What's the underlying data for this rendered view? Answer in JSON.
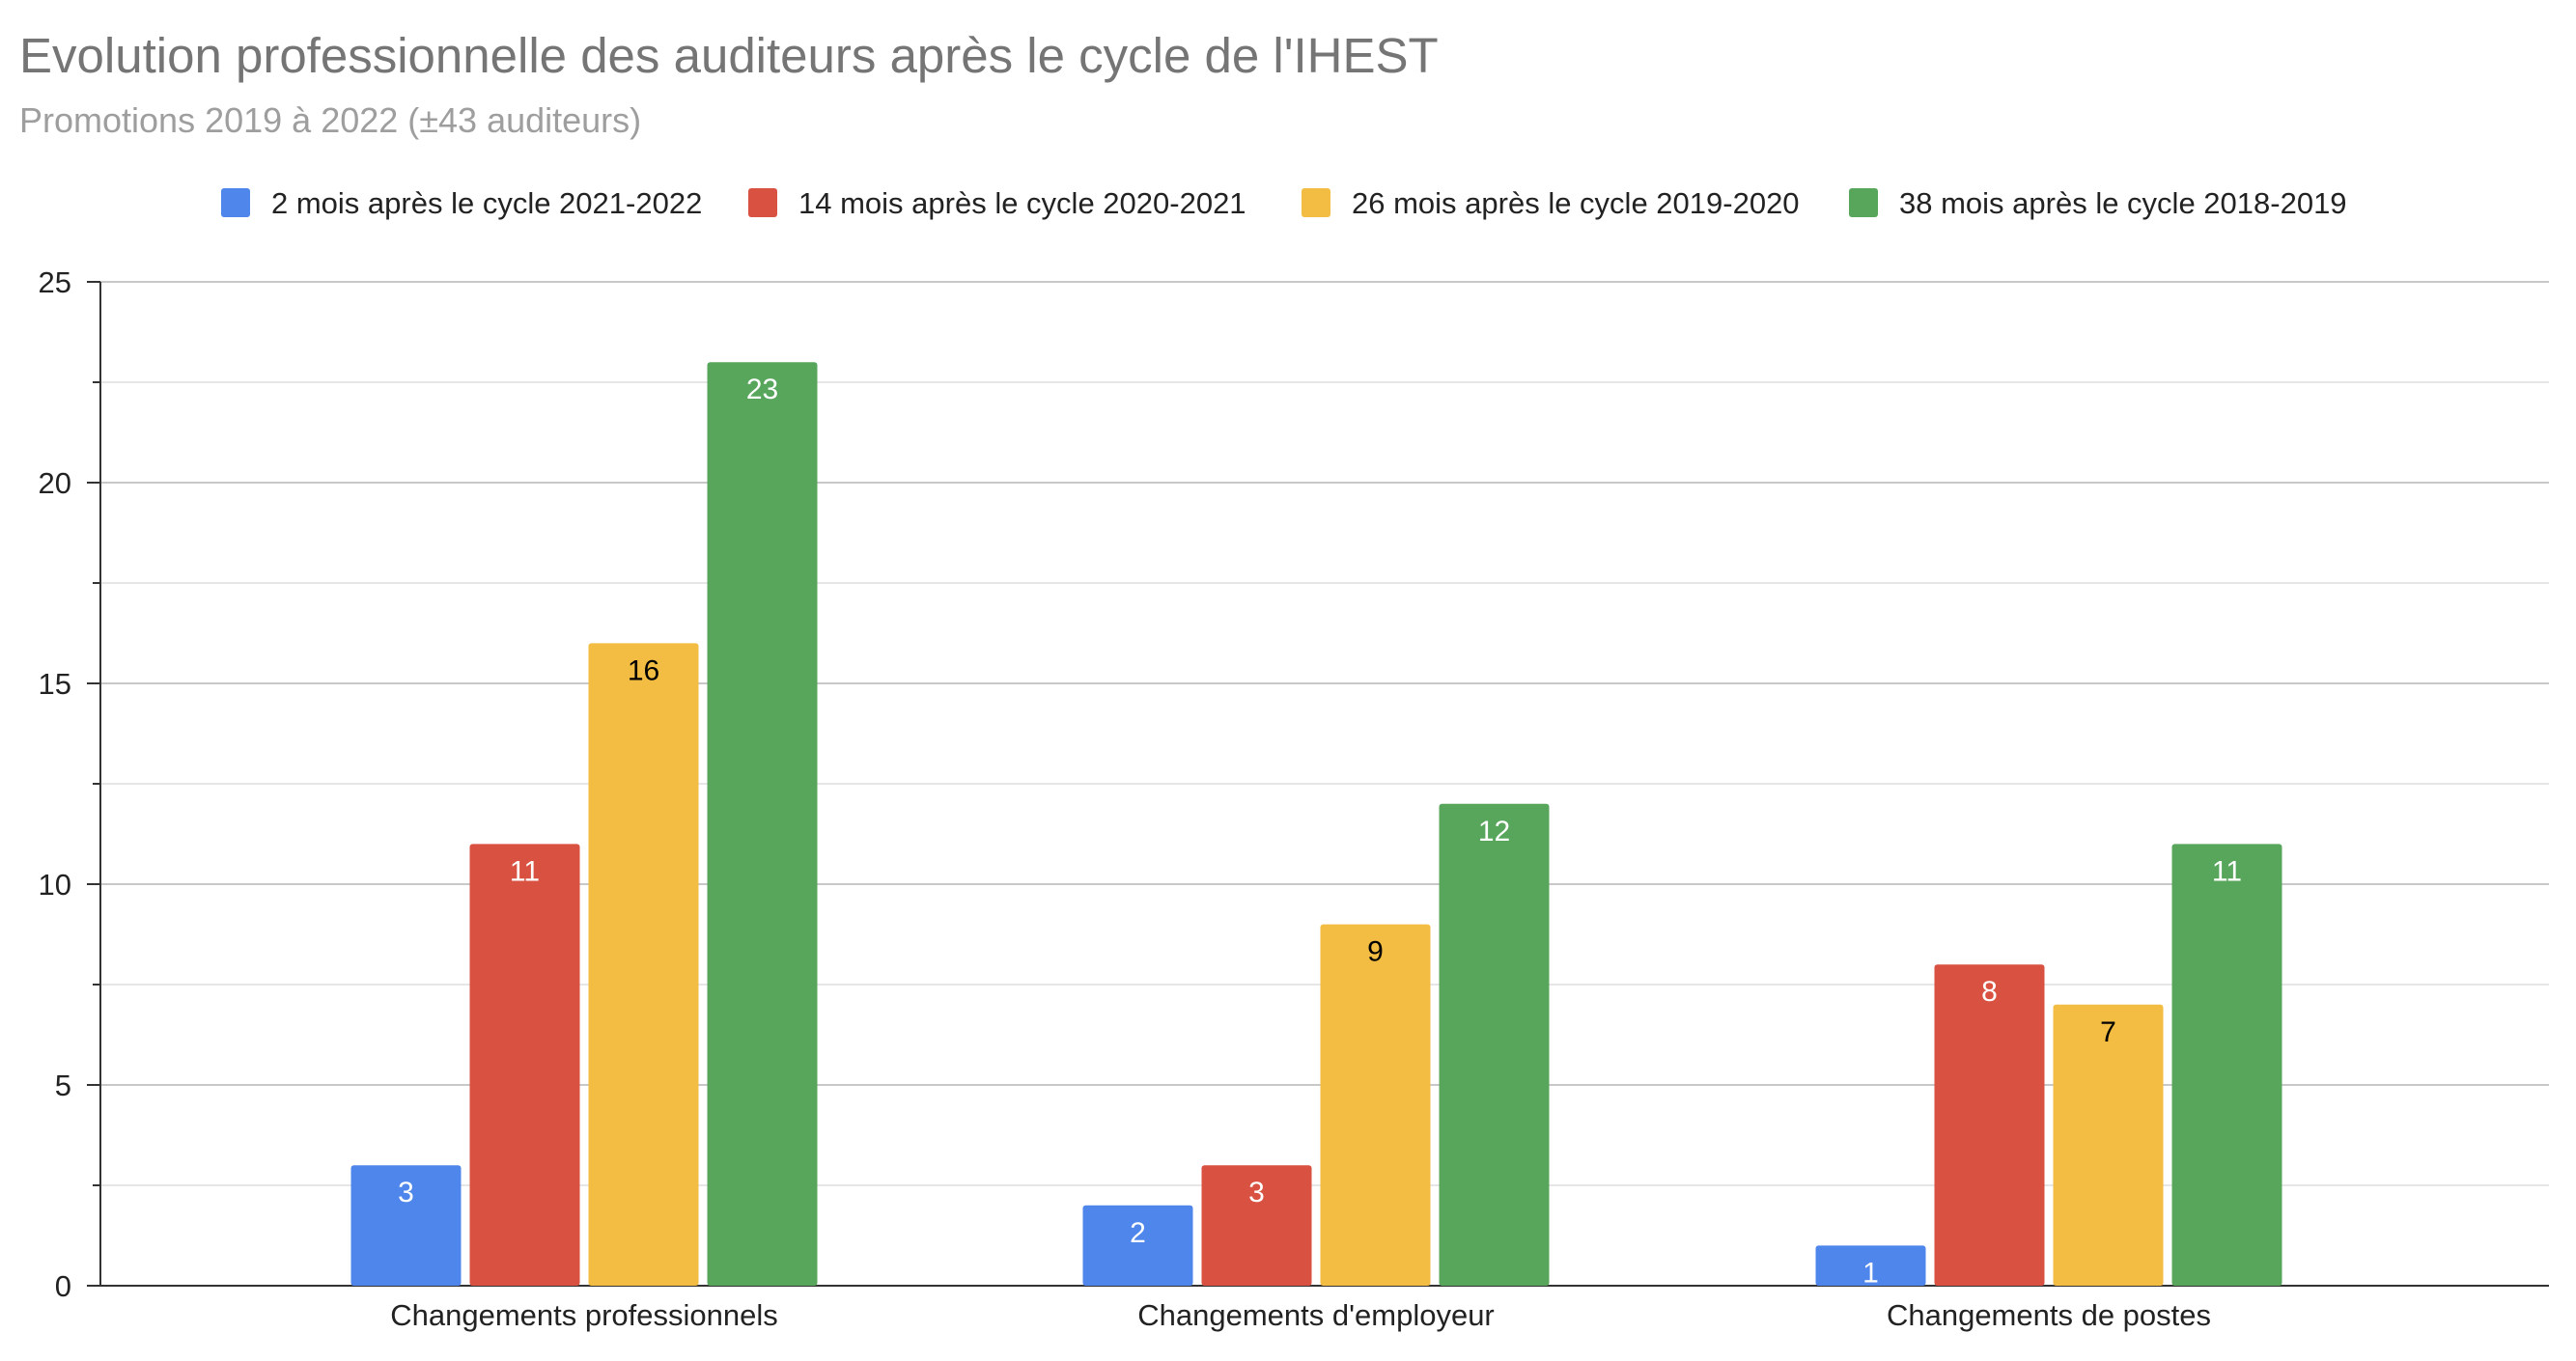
{
  "chart_data": {
    "type": "bar",
    "title": "Evolution professionnelle des auditeurs après le cycle de l'IHEST",
    "subtitle": "Promotions 2019 à 2022 (±43 auditeurs)",
    "xlabel": "",
    "ylabel": "",
    "ylim": [
      0,
      25
    ],
    "yticks": [
      0,
      5,
      10,
      15,
      20,
      25
    ],
    "grid": true,
    "legend_position": "top",
    "categories": [
      "Changements professionnels",
      "Changements d'employeur",
      "Changements de postes"
    ],
    "series": [
      {
        "name": "2 mois après le cycle 2021-2022",
        "color": "#4f86ec",
        "label_color": "#ffffff",
        "values": [
          3,
          2,
          1
        ]
      },
      {
        "name": "14 mois après le cycle 2020-2021",
        "color": "#d95140",
        "label_color": "#ffffff",
        "values": [
          11,
          3,
          8
        ]
      },
      {
        "name": "26 mois après le cycle 2019-2020",
        "color": "#f2bd42",
        "label_color": "#000000",
        "values": [
          16,
          9,
          7
        ]
      },
      {
        "name": "38 mois après le cycle 2018-2019",
        "color": "#58a65c",
        "label_color": "#ffffff",
        "values": [
          23,
          12,
          11
        ]
      }
    ]
  }
}
